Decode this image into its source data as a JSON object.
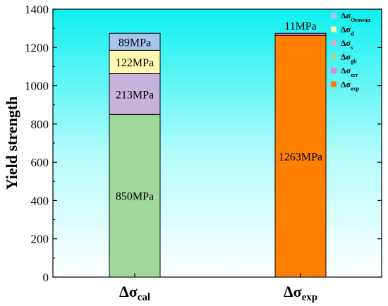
{
  "chart_data": {
    "type": "stacked-bar",
    "ylabel": "Yield strength",
    "ylim": [
      0,
      1400
    ],
    "yticks": [
      0,
      200,
      400,
      600,
      800,
      1000,
      1200,
      1400
    ],
    "background": "cyan-to-white vertical gradient",
    "categories": [
      {
        "id": "cal",
        "label": "Δσ",
        "subscript": "cal"
      },
      {
        "id": "exp",
        "label": "Δσ",
        "subscript": "exp"
      }
    ],
    "series": [
      {
        "name": "Δσ",
        "subscript": "gb",
        "color": "#9fd89a",
        "values": [
          850,
          0
        ],
        "labels": [
          "850MPa",
          ""
        ]
      },
      {
        "name": "Δσ",
        "subscript": "s",
        "color": "#c6b3dc",
        "values": [
          213,
          0
        ],
        "labels": [
          "213MPa",
          ""
        ]
      },
      {
        "name": "Δσ",
        "subscript": "d",
        "color": "#fffab0",
        "values": [
          122,
          0
        ],
        "labels": [
          "122MPa",
          ""
        ]
      },
      {
        "name": "Δσ",
        "subscript": "Orowan",
        "color": "#a7c5eb",
        "values": [
          89,
          0
        ],
        "labels": [
          "89MPa",
          ""
        ]
      },
      {
        "name": "Δσ",
        "subscript": "exp",
        "color": "#ff7f00",
        "values": [
          0,
          1263
        ],
        "labels": [
          "",
          "1263MPa"
        ]
      },
      {
        "name": "Δσ",
        "subscript": "err",
        "color": "#ee82cc",
        "values": [
          0,
          11
        ],
        "labels": [
          "",
          "11MPa"
        ]
      }
    ],
    "legend": {
      "placement": "top-right",
      "order": [
        "Orowan",
        "d",
        "s",
        "gb",
        "err",
        "exp"
      ]
    }
  }
}
